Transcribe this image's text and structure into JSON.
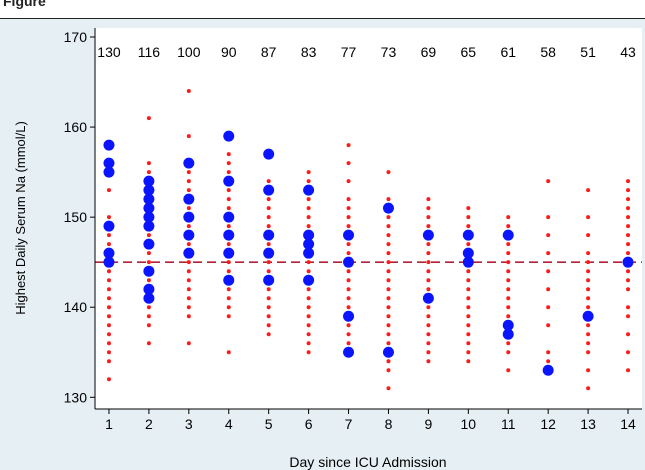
{
  "figure_label": "Figure",
  "colors": {
    "background": "#e6f0f4",
    "plot_bg": "#ffffff",
    "small_dot": "#ff1a1a",
    "large_dot": "#0a14ff",
    "reference_line": "#b0223a",
    "axis": "#000000"
  },
  "chart_data": {
    "type": "scatter",
    "title": "",
    "xlabel": "Day since ICU Admission",
    "ylabel": "Highest Daily Serum Na (mmol/L)",
    "xlim": [
      0.65,
      14.35
    ],
    "ylim": [
      128.7,
      171
    ],
    "x_ticks": [
      1,
      2,
      3,
      4,
      5,
      6,
      7,
      8,
      9,
      10,
      11,
      12,
      13,
      14
    ],
    "y_ticks": [
      130,
      140,
      150,
      160,
      170
    ],
    "grid": false,
    "reference_line": {
      "y": 145,
      "style": "dashed"
    },
    "counts": [
      130,
      116,
      100,
      90,
      87,
      83,
      77,
      73,
      69,
      65,
      61,
      58,
      51,
      43
    ],
    "small_points": [
      [
        1,
        [
          132,
          134,
          135,
          136,
          137,
          138,
          139,
          140,
          141,
          142,
          143,
          144,
          145,
          146,
          147,
          148,
          149,
          150,
          153
        ]
      ],
      [
        2,
        [
          136,
          138,
          139,
          140,
          141,
          142,
          143,
          144,
          145,
          146,
          147,
          148,
          149,
          150,
          151,
          152,
          153,
          154,
          155,
          156,
          161
        ]
      ],
      [
        3,
        [
          136,
          139,
          140,
          141,
          142,
          143,
          144,
          145,
          146,
          147,
          148,
          149,
          150,
          151,
          152,
          153,
          154,
          155,
          159,
          164
        ]
      ],
      [
        4,
        [
          135,
          139,
          140,
          141,
          142,
          143,
          144,
          145,
          146,
          147,
          148,
          149,
          150,
          151,
          152,
          153,
          154,
          155,
          156,
          157
        ]
      ],
      [
        5,
        [
          137,
          138,
          139,
          140,
          141,
          142,
          143,
          144,
          145,
          146,
          147,
          148,
          149,
          150,
          151,
          152,
          153,
          154
        ]
      ],
      [
        6,
        [
          135,
          136,
          137,
          138,
          139,
          140,
          141,
          142,
          143,
          144,
          145,
          146,
          147,
          148,
          149,
          150,
          151,
          152,
          153,
          154,
          155
        ]
      ],
      [
        7,
        [
          135,
          136,
          137,
          138,
          139,
          140,
          141,
          142,
          143,
          144,
          145,
          146,
          147,
          148,
          149,
          150,
          151,
          152,
          154,
          156,
          158
        ]
      ],
      [
        8,
        [
          131,
          133,
          134,
          135,
          136,
          137,
          138,
          139,
          140,
          141,
          142,
          143,
          144,
          145,
          146,
          147,
          148,
          149,
          150,
          151,
          152,
          155
        ]
      ],
      [
        9,
        [
          134,
          135,
          136,
          137,
          138,
          139,
          140,
          141,
          142,
          143,
          144,
          145,
          146,
          147,
          148,
          149,
          150,
          151,
          152
        ]
      ],
      [
        10,
        [
          134,
          135,
          136,
          137,
          138,
          139,
          140,
          141,
          142,
          143,
          144,
          145,
          146,
          147,
          148,
          149,
          150,
          151
        ]
      ],
      [
        11,
        [
          133,
          135,
          136,
          137,
          138,
          139,
          140,
          141,
          142,
          143,
          144,
          145,
          146,
          147,
          148,
          149,
          150
        ]
      ],
      [
        12,
        [
          133,
          134,
          135,
          138,
          140,
          142,
          144,
          146,
          148,
          150,
          154
        ]
      ],
      [
        13,
        [
          131,
          133,
          135,
          136,
          137,
          138,
          139,
          140,
          141,
          142,
          143,
          144,
          145,
          146,
          148,
          150,
          153
        ]
      ],
      [
        14,
        [
          133,
          135,
          137,
          139,
          140,
          142,
          143,
          144,
          145,
          146,
          147,
          148,
          149,
          150,
          151,
          152,
          153,
          154
        ]
      ]
    ],
    "large_points": [
      [
        1,
        [
          145,
          146,
          149,
          155,
          156,
          158
        ]
      ],
      [
        2,
        [
          141,
          142,
          144,
          147,
          149,
          150,
          151,
          152,
          153,
          154
        ]
      ],
      [
        3,
        [
          146,
          148,
          150,
          152,
          156
        ]
      ],
      [
        4,
        [
          143,
          146,
          148,
          150,
          154,
          159
        ]
      ],
      [
        5,
        [
          143,
          146,
          148,
          153,
          157
        ]
      ],
      [
        6,
        [
          143,
          146,
          147,
          148,
          153
        ]
      ],
      [
        7,
        [
          135,
          139,
          145,
          148
        ]
      ],
      [
        8,
        [
          135,
          151
        ]
      ],
      [
        9,
        [
          141,
          148
        ]
      ],
      [
        10,
        [
          145,
          146,
          148
        ]
      ],
      [
        11,
        [
          137,
          138,
          148
        ]
      ],
      [
        12,
        [
          133
        ]
      ],
      [
        13,
        [
          139
        ]
      ],
      [
        14,
        [
          145
        ]
      ]
    ]
  }
}
